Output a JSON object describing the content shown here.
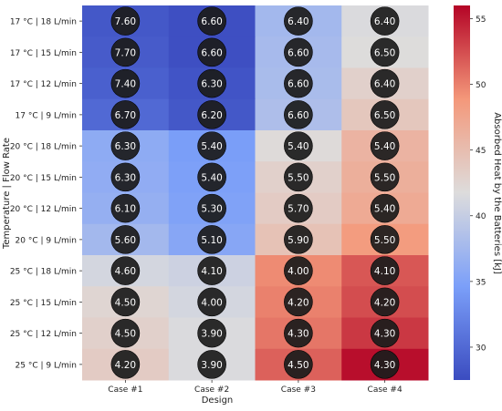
{
  "chart_data": {
    "type": "heatmap",
    "xlabel": "Design",
    "ylabel": "Temperature | Flow Rate",
    "x_categories": [
      "Case #1",
      "Case #2",
      "Case #3",
      "Case #4"
    ],
    "y_categories": [
      "17 °C | 18 L/min",
      "17 °C | 15 L/min",
      "17 °C | 12 L/min",
      "17 °C | 9 L/min",
      "20 °C | 18 L/min",
      "20 °C | 15 L/min",
      "20 °C | 12 L/min",
      "20 °C | 9 L/min",
      "25 °C | 18 L/min",
      "25 °C | 15 L/min",
      "25 °C | 12 L/min",
      "25 °C | 9 L/min"
    ],
    "heat_values": [
      [
        28.5,
        27.8,
        37.5,
        41.5
      ],
      [
        28.8,
        27.8,
        37.8,
        41.8
      ],
      [
        29.2,
        28.2,
        38.0,
        43.0
      ],
      [
        30.0,
        28.5,
        38.3,
        44.0
      ],
      [
        36.0,
        34.5,
        42.0,
        46.0
      ],
      [
        36.2,
        34.8,
        43.0,
        46.5
      ],
      [
        36.5,
        35.0,
        43.5,
        47.0
      ],
      [
        37.5,
        35.5,
        44.5,
        48.5
      ],
      [
        41.0,
        40.5,
        49.5,
        52.0
      ],
      [
        42.5,
        41.0,
        50.0,
        52.5
      ],
      [
        43.0,
        41.5,
        50.5,
        53.5
      ],
      [
        43.5,
        41.5,
        51.5,
        55.5
      ]
    ],
    "labels": [
      [
        "7.60",
        "6.60",
        "6.40",
        "6.40"
      ],
      [
        "7.70",
        "6.60",
        "6.60",
        "6.50"
      ],
      [
        "7.40",
        "6.30",
        "6.60",
        "6.40"
      ],
      [
        "6.70",
        "6.20",
        "6.60",
        "6.50"
      ],
      [
        "6.30",
        "5.40",
        "5.40",
        "5.40"
      ],
      [
        "6.30",
        "5.40",
        "5.50",
        "5.50"
      ],
      [
        "6.10",
        "5.30",
        "5.70",
        "5.40"
      ],
      [
        "5.60",
        "5.10",
        "5.90",
        "5.50"
      ],
      [
        "4.60",
        "4.10",
        "4.00",
        "4.10"
      ],
      [
        "4.50",
        "4.00",
        "4.20",
        "4.20"
      ],
      [
        "4.50",
        "3.90",
        "4.30",
        "4.30"
      ],
      [
        "4.20",
        "3.90",
        "4.50",
        "4.30"
      ]
    ],
    "colorbar": {
      "label": "Absorbed Heat by the Batteries [kJ]",
      "min": 27.5,
      "max": 56,
      "ticks": [
        30,
        35,
        40,
        45,
        50,
        55
      ],
      "colormap": "coolwarm"
    }
  }
}
